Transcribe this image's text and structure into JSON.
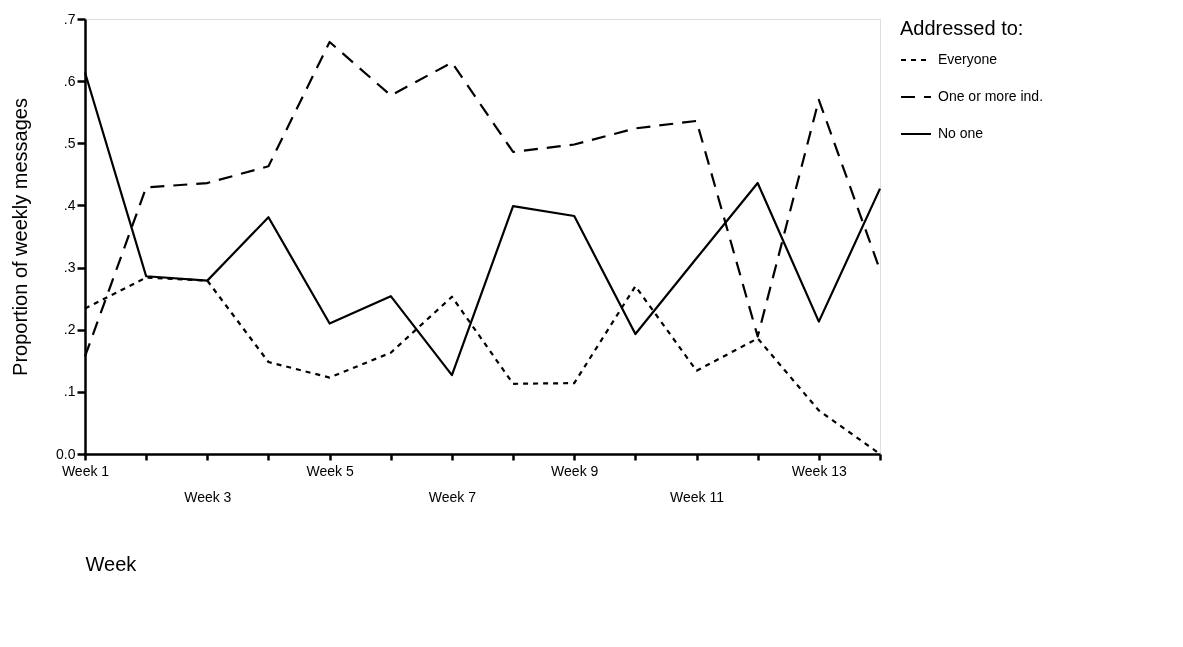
{
  "chart_data": {
    "type": "line",
    "xlabel": "Week",
    "ylabel": "Proportion of weekly messages",
    "legend_title": "Addressed to:",
    "categories": [
      "Week 1",
      null,
      "Week 3",
      null,
      "Week 5",
      null,
      "Week 7",
      null,
      "Week 9",
      null,
      "Week 11",
      null,
      "Week 13",
      null
    ],
    "series": [
      {
        "name": "Everyone",
        "color": "#000000",
        "line_style": "dotted",
        "values": [
          0.234,
          0.284,
          0.279,
          0.148,
          0.123,
          0.163,
          0.253,
          0.113,
          0.114,
          0.27,
          0.134,
          0.186,
          0.07,
          0.0
        ]
      },
      {
        "name": "One or more ind.",
        "color": "#000000",
        "line_style": "dashed",
        "values": [
          0.157,
          0.429,
          0.436,
          0.463,
          0.663,
          0.577,
          0.63,
          0.486,
          0.498,
          0.524,
          0.536,
          0.189,
          0.57,
          0.296
        ]
      },
      {
        "name": "No one",
        "color": "#000000",
        "line_style": "solid",
        "values": [
          0.614,
          0.286,
          0.279,
          0.381,
          0.21,
          0.254,
          0.127,
          0.399,
          0.383,
          0.193,
          0.315,
          0.436,
          0.213,
          0.427
        ]
      }
    ],
    "ylim": [
      0,
      0.7
    ],
    "yticks": [
      {
        "value": 0,
        "label": "0.0"
      },
      {
        "value": 0.1,
        "label": ".1"
      },
      {
        "value": 0.2,
        "label": ".2"
      },
      {
        "value": 0.3,
        "label": ".3"
      },
      {
        "value": 0.4,
        "label": ".4"
      },
      {
        "value": 0.5,
        "label": ".5"
      },
      {
        "value": 0.6,
        "label": ".6"
      },
      {
        "value": 0.7,
        "label": ".7"
      }
    ],
    "grid": false,
    "legend": "right",
    "marker": "none"
  }
}
